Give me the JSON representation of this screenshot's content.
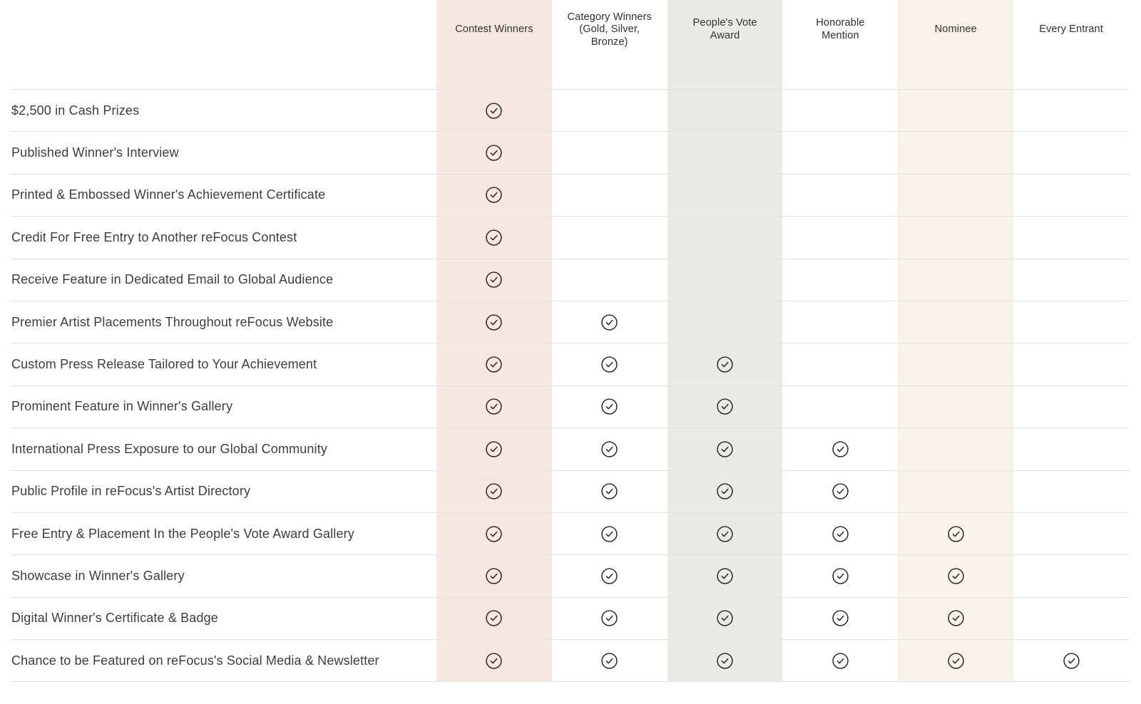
{
  "table": {
    "columns": [
      {
        "label": "Contest Winners",
        "bg": "#f6e8e0"
      },
      {
        "label": "Category Winners\n(Gold, Silver,\nBronze)",
        "bg": ""
      },
      {
        "label": "People's Vote\nAward",
        "bg": "#e9eae6"
      },
      {
        "label": "Honorable\nMention",
        "bg": ""
      },
      {
        "label": "Nominee",
        "bg": "#f9f2ec"
      },
      {
        "label": "Every Entrant",
        "bg": ""
      }
    ],
    "check_icon_color": "#1f1f1f",
    "rows": [
      {
        "label": "$2,500 in Cash Prizes",
        "checks": [
          true,
          false,
          false,
          false,
          false,
          false
        ]
      },
      {
        "label": "Published Winner's Interview",
        "checks": [
          true,
          false,
          false,
          false,
          false,
          false
        ]
      },
      {
        "label": "Printed & Embossed Winner's Achievement Certificate",
        "checks": [
          true,
          false,
          false,
          false,
          false,
          false
        ]
      },
      {
        "label": "Credit For Free Entry to Another reFocus Contest",
        "checks": [
          true,
          false,
          false,
          false,
          false,
          false
        ]
      },
      {
        "label": "Receive Feature in Dedicated Email to Global Audience",
        "checks": [
          true,
          false,
          false,
          false,
          false,
          false
        ]
      },
      {
        "label": "Premier Artist Placements Throughout reFocus Website",
        "checks": [
          true,
          true,
          false,
          false,
          false,
          false
        ]
      },
      {
        "label": "Custom Press Release Tailored to Your Achievement",
        "checks": [
          true,
          true,
          true,
          false,
          false,
          false
        ]
      },
      {
        "label": "Prominent Feature in Winner's Gallery",
        "checks": [
          true,
          true,
          true,
          false,
          false,
          false
        ]
      },
      {
        "label": "International Press Exposure to our Global Community",
        "checks": [
          true,
          true,
          true,
          true,
          false,
          false
        ]
      },
      {
        "label": "Public Profile in reFocus's Artist Directory",
        "checks": [
          true,
          true,
          true,
          true,
          false,
          false
        ]
      },
      {
        "label": "Free Entry & Placement In the People's Vote Award Gallery",
        "checks": [
          true,
          true,
          true,
          true,
          true,
          false
        ]
      },
      {
        "label": "Showcase in Winner's Gallery",
        "checks": [
          true,
          true,
          true,
          true,
          true,
          false
        ]
      },
      {
        "label": "Digital Winner's Certificate & Badge",
        "checks": [
          true,
          true,
          true,
          true,
          true,
          false
        ]
      },
      {
        "label": "Chance to be Featured on reFocus's Social Media & Newsletter",
        "checks": [
          true,
          true,
          true,
          true,
          true,
          true
        ]
      }
    ]
  }
}
